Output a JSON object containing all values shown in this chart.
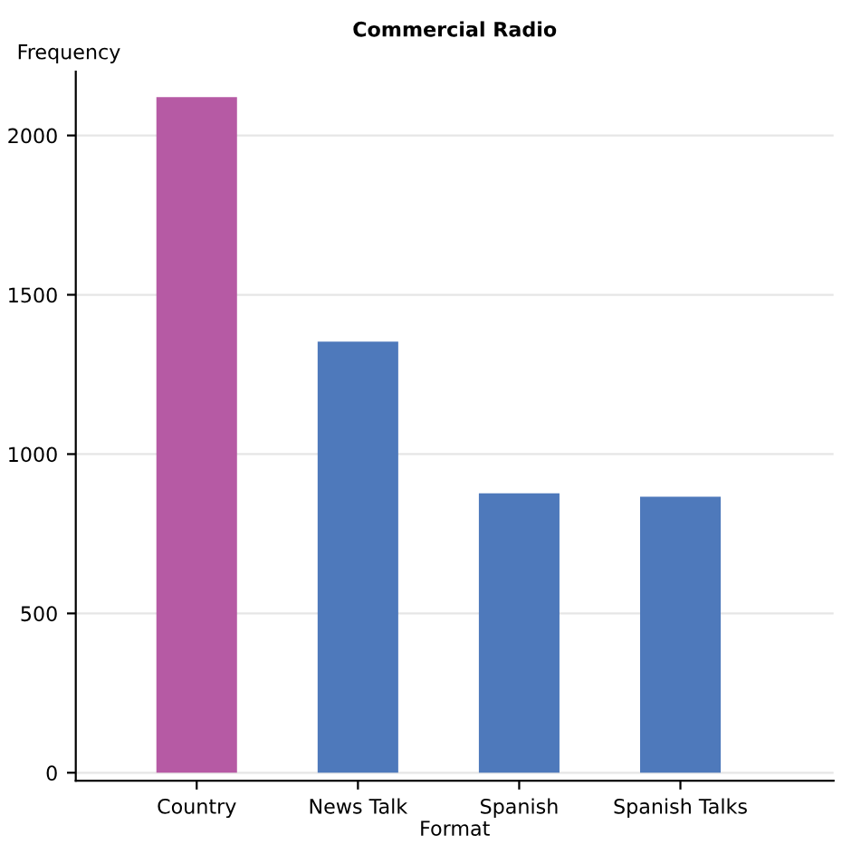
{
  "chart_data": {
    "type": "bar",
    "title": "Commercial Radio",
    "xlabel": "Format",
    "ylabel": "Frequency",
    "categories": [
      "Country",
      "News Talk",
      "Spanish",
      "Spanish Talks"
    ],
    "values": [
      2120,
      1353,
      877,
      866
    ],
    "colors": [
      "#b65aa4",
      "#4e79bb",
      "#4e79bb",
      "#4e79bb"
    ],
    "ylim": [
      -25,
      2200
    ],
    "yticks": [
      0,
      500,
      1000,
      1500,
      2000
    ],
    "grid": "y"
  }
}
